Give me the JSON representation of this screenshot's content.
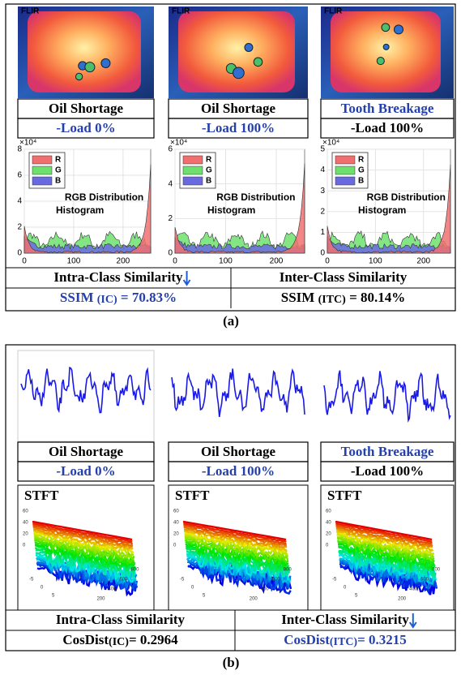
{
  "panel_a": {
    "label": "(a)",
    "columns": [
      {
        "logo": "FLIR",
        "fault": "Oil Shortage",
        "load": "-Load 0%",
        "histogram": {
          "exponent": "×10⁴",
          "yticks": [
            "8",
            "6",
            "4",
            "2",
            "0"
          ],
          "xticks": [
            "0",
            "100",
            "200"
          ],
          "legend": [
            "R",
            "G",
            "B"
          ],
          "annotation": [
            "RGB Distribution",
            "Histogram"
          ]
        }
      },
      {
        "logo": "FLIR",
        "fault": "Oil Shortage",
        "load": "-Load 100%",
        "histogram": {
          "exponent": "×10⁴",
          "yticks": [
            "6",
            "4",
            "2",
            "0"
          ],
          "xticks": [
            "0",
            "100",
            "200"
          ],
          "legend": [
            "R",
            "G",
            "B"
          ],
          "annotation": [
            "RGB Distribution",
            "Histogram"
          ]
        }
      },
      {
        "logo": "FLIR",
        "fault": "Tooth Breakage",
        "load": "-Load 100%",
        "histogram": {
          "exponent": "×10⁴",
          "yticks": [
            "5",
            "4",
            "3",
            "2",
            "1",
            "0"
          ],
          "xticks": [
            "0",
            "100",
            "200"
          ],
          "legend": [
            "R",
            "G",
            "B"
          ],
          "annotation": [
            "RGB Distribution",
            "Histogram"
          ]
        }
      }
    ],
    "similarity": [
      {
        "title": "Intra-Class Similarity",
        "metric": "SSIM ",
        "subscript": "(IC)",
        "value": " = 70.83%"
      },
      {
        "title": "Inter-Class Similarity",
        "metric": "SSIM ",
        "subscript": "(ITC)",
        "value": " = 80.14%"
      }
    ]
  },
  "panel_b": {
    "label": "(b)",
    "columns": [
      {
        "fault": "Oil Shortage",
        "load": "-Load 0%",
        "stft": {
          "title": "STFT",
          "zticks": [
            "60",
            "40",
            "20",
            "0"
          ],
          "xticks": [
            "-5",
            "0",
            "5"
          ],
          "yticks": [
            "200",
            "400",
            "600",
            "800"
          ]
        }
      },
      {
        "fault": "Oil Shortage",
        "load": "-Load 100%",
        "stft": {
          "title": "STFT",
          "zticks": [
            "60",
            "40",
            "20",
            "0"
          ],
          "xticks": [
            "-5",
            "0",
            "5"
          ],
          "yticks": [
            "200",
            "400",
            "600",
            "800"
          ]
        }
      },
      {
        "fault": "Tooth Breakage",
        "load": "-Load 100%",
        "stft": {
          "title": "STFT",
          "zticks": [
            "60",
            "40",
            "20",
            "0"
          ],
          "xticks": [
            "-5",
            "0",
            "5"
          ],
          "yticks": [
            "200",
            "400",
            "600",
            "800"
          ]
        }
      }
    ],
    "similarity": [
      {
        "title": "Intra-Class Similarity",
        "metric": "CosDist",
        "subscript": "(IC)",
        "value": "= 0.2964"
      },
      {
        "title": "Inter-Class Similarity",
        "metric": "CosDist",
        "subscript": "(ITC)",
        "value": "= 0.3215"
      }
    ]
  }
}
